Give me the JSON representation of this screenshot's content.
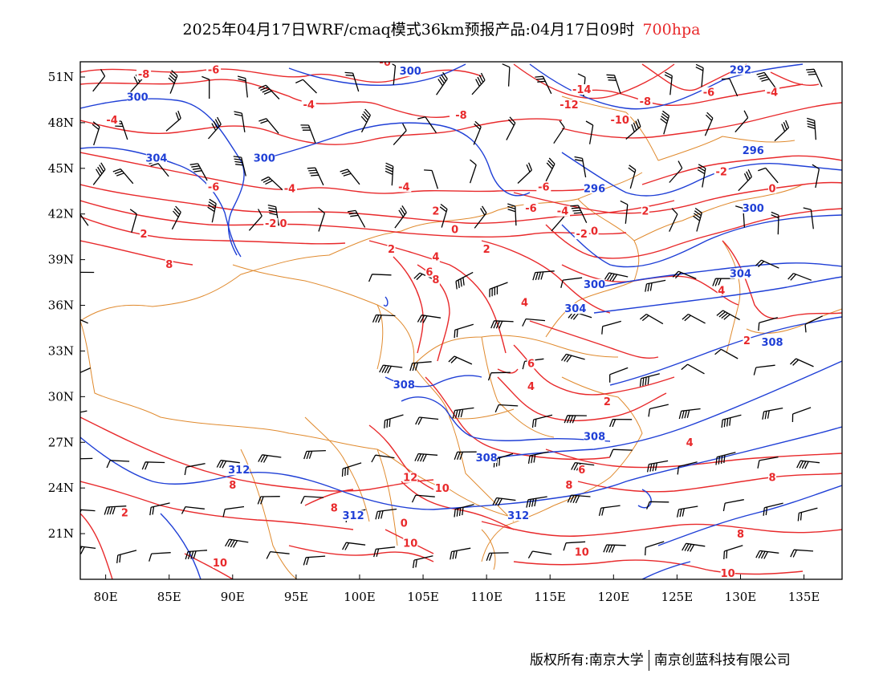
{
  "title": {
    "main": "2025年04月17日WRF/cmaq模式36km预报产品:04月17日09时",
    "level": "700hpa"
  },
  "colors": {
    "temperature": "#e8292b",
    "height": "#1f3fd6",
    "border": "#e08a2e",
    "wind": "#000000",
    "level_text": "#e8292b"
  },
  "map": {
    "lat_labels": [
      "51N",
      "48N",
      "45N",
      "42N",
      "39N",
      "36N",
      "33N",
      "30N",
      "27N",
      "24N",
      "21N"
    ],
    "lon_labels": [
      "80E",
      "85E",
      "90E",
      "95E",
      "100E",
      "105E",
      "110E",
      "115E",
      "120E",
      "125E",
      "130E",
      "135E"
    ],
    "lon_range": [
      78,
      138
    ],
    "lat_range": [
      18,
      52
    ]
  },
  "contour_labels": {
    "temperature": [
      {
        "text": "-8",
        "lon": 83.0,
        "lat": 51.0
      },
      {
        "text": "-6",
        "lon": 88.5,
        "lat": 51.3
      },
      {
        "text": "-6",
        "lon": 102.0,
        "lat": 51.8
      },
      {
        "text": "-4",
        "lon": 80.5,
        "lat": 48.0
      },
      {
        "text": "-4",
        "lon": 96.0,
        "lat": 49.0
      },
      {
        "text": "-8",
        "lon": 108.0,
        "lat": 48.3
      },
      {
        "text": "-14",
        "lon": 117.5,
        "lat": 50.0
      },
      {
        "text": "-12",
        "lon": 116.5,
        "lat": 49.0
      },
      {
        "text": "-8",
        "lon": 122.5,
        "lat": 49.2
      },
      {
        "text": "-6",
        "lon": 127.5,
        "lat": 49.8
      },
      {
        "text": "-4",
        "lon": 132.5,
        "lat": 49.8
      },
      {
        "text": "-10",
        "lon": 120.5,
        "lat": 48.0
      },
      {
        "text": "-2",
        "lon": 128.5,
        "lat": 44.6
      },
      {
        "text": "0",
        "lon": 132.5,
        "lat": 43.5
      },
      {
        "text": "-6",
        "lon": 88.5,
        "lat": 43.6
      },
      {
        "text": "-4",
        "lon": 94.5,
        "lat": 43.5
      },
      {
        "text": "-4",
        "lon": 103.5,
        "lat": 43.6
      },
      {
        "text": "-6",
        "lon": 114.5,
        "lat": 43.6
      },
      {
        "text": "-6",
        "lon": 113.5,
        "lat": 42.2
      },
      {
        "text": "-4",
        "lon": 116.0,
        "lat": 42.0
      },
      {
        "text": "2",
        "lon": 83.0,
        "lat": 40.5
      },
      {
        "text": "-2",
        "lon": 93.0,
        "lat": 41.2
      },
      {
        "text": "0",
        "lon": 94.0,
        "lat": 41.2
      },
      {
        "text": "2",
        "lon": 102.5,
        "lat": 39.5
      },
      {
        "text": "2",
        "lon": 106.0,
        "lat": 42.0
      },
      {
        "text": "0",
        "lon": 107.5,
        "lat": 40.8
      },
      {
        "text": "2",
        "lon": 110.0,
        "lat": 39.5
      },
      {
        "text": "-2",
        "lon": 117.5,
        "lat": 40.5
      },
      {
        "text": "0",
        "lon": 118.5,
        "lat": 40.7
      },
      {
        "text": "2",
        "lon": 122.5,
        "lat": 42.0
      },
      {
        "text": "8",
        "lon": 85.0,
        "lat": 38.5
      },
      {
        "text": "4",
        "lon": 106.0,
        "lat": 39.0
      },
      {
        "text": "6",
        "lon": 105.5,
        "lat": 38.0
      },
      {
        "text": "8",
        "lon": 106.0,
        "lat": 37.5
      },
      {
        "text": "4",
        "lon": 113.0,
        "lat": 36.0
      },
      {
        "text": "4",
        "lon": 128.5,
        "lat": 36.8
      },
      {
        "text": "2",
        "lon": 130.5,
        "lat": 33.5
      },
      {
        "text": "6",
        "lon": 113.5,
        "lat": 32.0
      },
      {
        "text": "4",
        "lon": 113.5,
        "lat": 30.5
      },
      {
        "text": "2",
        "lon": 119.5,
        "lat": 29.5
      },
      {
        "text": "4",
        "lon": 126.0,
        "lat": 26.8
      },
      {
        "text": "6",
        "lon": 117.5,
        "lat": 25.0
      },
      {
        "text": "8",
        "lon": 116.5,
        "lat": 24.0
      },
      {
        "text": "8",
        "lon": 132.5,
        "lat": 24.5
      },
      {
        "text": "8",
        "lon": 90.0,
        "lat": 24.0
      },
      {
        "text": "8",
        "lon": 98.0,
        "lat": 22.5
      },
      {
        "text": "12",
        "lon": 104.0,
        "lat": 24.5
      },
      {
        "text": "10",
        "lon": 106.5,
        "lat": 23.8
      },
      {
        "text": "2",
        "lon": 81.5,
        "lat": 22.2
      },
      {
        "text": "0",
        "lon": 103.5,
        "lat": 21.5
      },
      {
        "text": "10",
        "lon": 104.0,
        "lat": 20.2
      },
      {
        "text": "10",
        "lon": 89.0,
        "lat": 18.9
      },
      {
        "text": "10",
        "lon": 117.5,
        "lat": 19.6
      },
      {
        "text": "8",
        "lon": 130.0,
        "lat": 20.8
      },
      {
        "text": "10",
        "lon": 129.0,
        "lat": 18.2
      }
    ],
    "height": [
      {
        "text": "300",
        "lon": 82.5,
        "lat": 49.5
      },
      {
        "text": "300",
        "lon": 104.0,
        "lat": 51.2
      },
      {
        "text": "292",
        "lon": 130.0,
        "lat": 51.3
      },
      {
        "text": "304",
        "lon": 84.0,
        "lat": 45.5
      },
      {
        "text": "300",
        "lon": 92.5,
        "lat": 45.5
      },
      {
        "text": "296",
        "lon": 131.0,
        "lat": 46.0
      },
      {
        "text": "296",
        "lon": 118.5,
        "lat": 43.5
      },
      {
        "text": "300",
        "lon": 131.0,
        "lat": 42.2
      },
      {
        "text": "304",
        "lon": 130.0,
        "lat": 37.9
      },
      {
        "text": "300",
        "lon": 118.5,
        "lat": 37.2
      },
      {
        "text": "304",
        "lon": 117.0,
        "lat": 35.6
      },
      {
        "text": "308",
        "lon": 132.5,
        "lat": 33.4
      },
      {
        "text": "308",
        "lon": 103.5,
        "lat": 30.6
      },
      {
        "text": "308",
        "lon": 118.5,
        "lat": 27.2
      },
      {
        "text": "308",
        "lon": 110.0,
        "lat": 25.8
      },
      {
        "text": "312",
        "lon": 90.5,
        "lat": 25.0
      },
      {
        "text": "312",
        "lon": 99.5,
        "lat": 22.0
      },
      {
        "text": "312",
        "lon": 112.5,
        "lat": 22.0
      }
    ]
  },
  "footer": {
    "left": "版权所有:南京大学",
    "right": "南京创蓝科技有限公司"
  }
}
